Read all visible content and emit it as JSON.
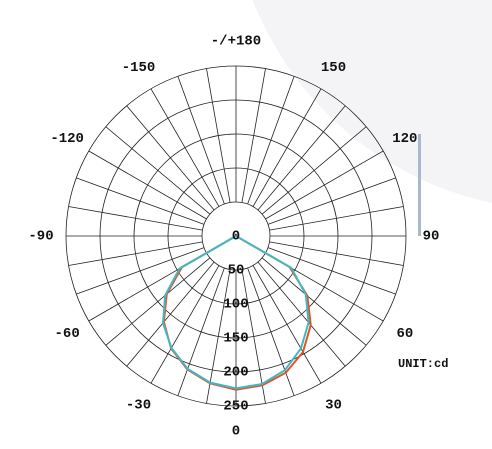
{
  "chart_data": {
    "type": "polar",
    "unit_label": "UNIT:cd",
    "x": [
      -90,
      -80,
      -70,
      -60,
      -50,
      -40,
      -30,
      -20,
      -10,
      0,
      10,
      20,
      30,
      40,
      50,
      60,
      70,
      80,
      90
    ],
    "series": [
      {
        "color": "#e0542a",
        "values": [
          0,
          0,
          0,
          92,
          133,
          165,
          191,
          209,
          220,
          226,
          223,
          214,
          197,
          171,
          137,
          91,
          0,
          0,
          0
        ]
      },
      {
        "color": "#3fb8c4",
        "values": [
          0,
          0,
          0,
          96,
          136,
          167,
          190,
          208,
          219,
          224,
          221,
          210,
          191,
          166,
          134,
          94,
          0,
          0,
          0
        ]
      }
    ],
    "rlim": [
      0,
      250
    ],
    "rticks": [
      0,
      50,
      100,
      150,
      200,
      250
    ],
    "thetaticks": [
      0,
      30,
      60,
      90,
      120,
      150,
      {
        "value": 180,
        "label": "-/+180"
      },
      -150,
      -120,
      -90,
      -60,
      -30
    ],
    "grid": true
  }
}
